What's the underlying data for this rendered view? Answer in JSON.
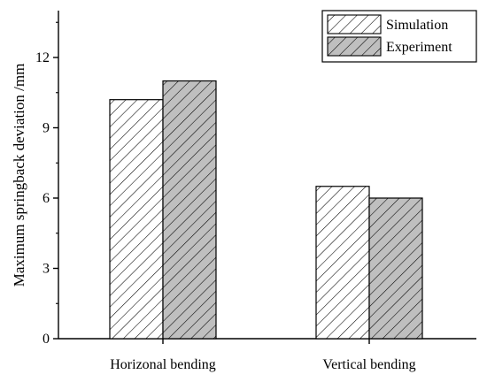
{
  "chart_data": {
    "type": "bar",
    "categories": [
      "Horizonal bending",
      "Vertical bending"
    ],
    "series": [
      {
        "name": "Simulation",
        "values": [
          10.2,
          6.5
        ],
        "fill": "#ffffff"
      },
      {
        "name": "Experiment",
        "values": [
          11.0,
          6.0
        ],
        "fill": "#bfbfbf"
      }
    ],
    "ylabel": "Maximum springback deviation /mm",
    "xlabel": "",
    "ylim": [
      0,
      14
    ],
    "yticks": [
      0,
      3,
      6,
      9,
      12
    ],
    "grid": false,
    "legend": "top-right",
    "pattern": "diagonal-hatch"
  }
}
